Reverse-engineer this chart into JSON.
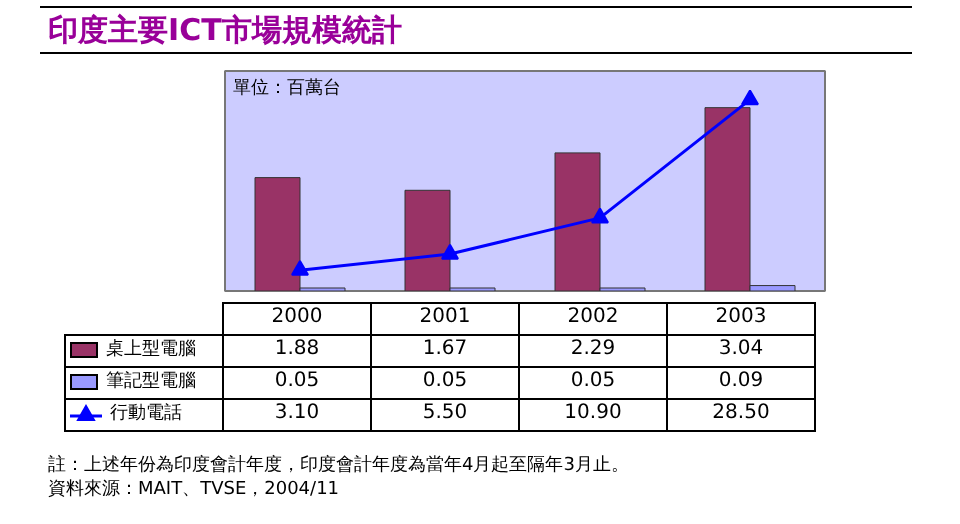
{
  "chart_data": {
    "type": "bar",
    "title": "印度主要ICT市場規模統計",
    "categories": [
      "2000",
      "2001",
      "2002",
      "2003"
    ],
    "series": [
      {
        "name": "桌上型電腦",
        "color": "#993366",
        "values": [
          1.88,
          1.67,
          2.29,
          3.04
        ]
      },
      {
        "name": "筆記型電腦",
        "color": "#9999ff",
        "values": [
          0.05,
          0.05,
          0.05,
          0.09
        ]
      },
      {
        "name": "行動電話",
        "type": "line",
        "axis": "y2",
        "color": "#0000ff",
        "values": [
          3.1,
          5.5,
          10.9,
          28.5
        ],
        "value_labels": [
          "3.10",
          "5.50",
          "10.90",
          "28.50"
        ]
      }
    ],
    "data_labels": true,
    "marker": "triangle",
    "legend": "bottom",
    "tick_labels": false,
    "grid": false,
    "annotations": [
      "單位：百萬台",
      "註：上述年份為印度會計年度，印度會計年度為當年4月起至隔年3月止。",
      "資料來源：MAIT、TVSE，2004/11"
    ]
  }
}
